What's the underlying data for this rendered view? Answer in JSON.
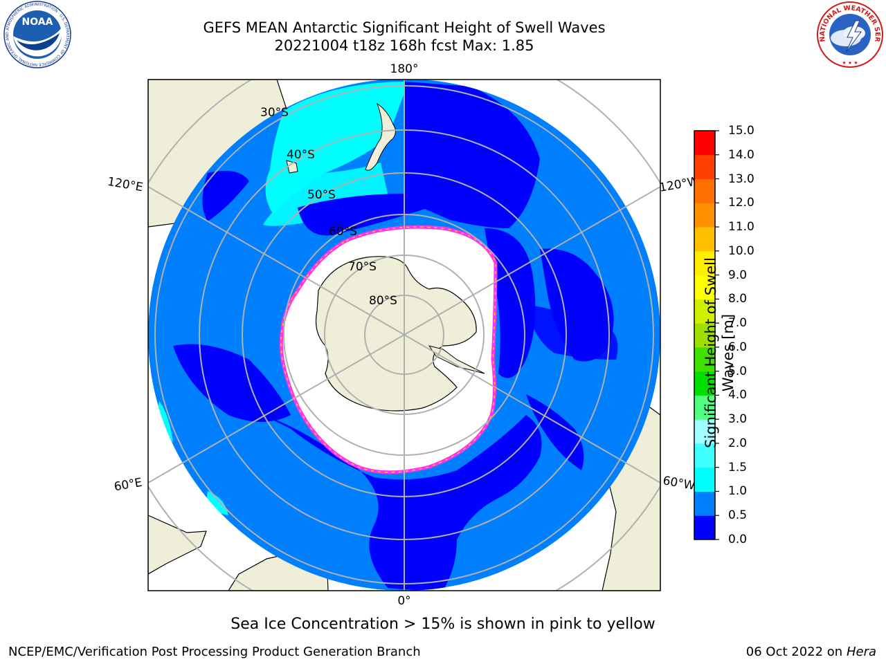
{
  "header": {
    "title_line1": "GEFS MEAN Antarctic Significant Height of Swell Waves",
    "title_line2": "20221004 t18z 168h fcst   Max: 1.85"
  },
  "logos": {
    "noaa_text": "NOAA",
    "noaa_ring_text": "NATIONAL OCEANIC AND ATMOSPHERIC ADMINISTRATION · U.S. DEPARTMENT OF COMMERCE ·",
    "nws_ring_text": "NATIONAL WEATHER SERVICE"
  },
  "map": {
    "projection": "south-polar-stereographic",
    "longitude_labels": {
      "lon_180": "180°",
      "lon_0": "0°",
      "lon_120e": "120°E",
      "lon_120w": "120°W",
      "lon_60e": "60°E",
      "lon_60w": "60°W"
    },
    "latitude_labels": {
      "lat_30": "30°S",
      "lat_40": "40°S",
      "lat_50": "50°S",
      "lat_60": "60°S",
      "lat_70": "70°S",
      "lat_80": "80°S"
    },
    "colors": {
      "land": "#eeeed9",
      "ice_sheet": "#ffffff",
      "swell_0_0_5": "#0000ff",
      "swell_0_5_1": "#0080ff",
      "swell_1_1_5": "#00ffff",
      "sea_ice_edge_pink": "#ff33ee",
      "sea_ice_edge_yellow": "#ffc020",
      "graticule": "#b0b0b0"
    }
  },
  "colorbar": {
    "label": "Significant Height of Swell Waves [m]",
    "ticks": [
      "0.0",
      "0.5",
      "1.0",
      "1.5",
      "2.0",
      "3.0",
      "4.0",
      "5.0",
      "6.0",
      "7.0",
      "8.0",
      "9.0",
      "10.0",
      "11.0",
      "12.0",
      "13.0",
      "14.0",
      "15.0"
    ],
    "colors": [
      "#0000ff",
      "#0080ff",
      "#00ffff",
      "#40ffff",
      "#a0ffff",
      "#50ff80",
      "#00e000",
      "#40e000",
      "#a0e000",
      "#d0f000",
      "#ffff00",
      "#ffee00",
      "#ffc000",
      "#ff9000",
      "#ff7000",
      "#ff4000",
      "#ff0000"
    ]
  },
  "notes": {
    "ice_note": "Sea Ice Concentration > 15% is shown in pink to yellow"
  },
  "footer": {
    "left": "NCEP/EMC/Verification Post Processing Product Generation Branch",
    "right_prefix": "06 Oct 2022 on ",
    "right_host": "Hera"
  }
}
